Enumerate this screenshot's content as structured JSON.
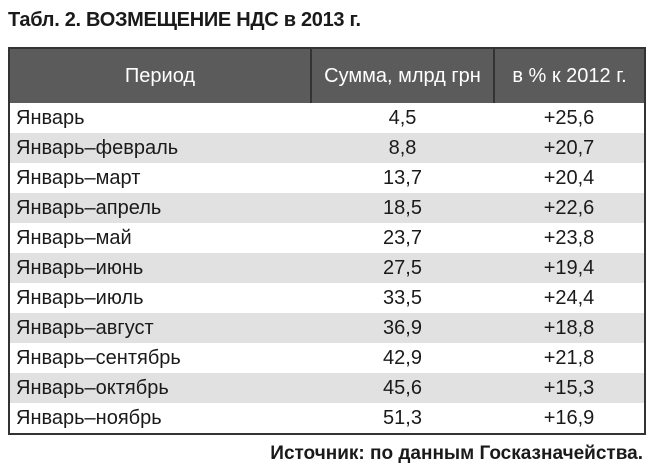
{
  "title": "Табл. 2. ВОЗМЕЩЕНИЕ НДС в 2013 г.",
  "table": {
    "headers": [
      "Период",
      "Сумма, млрд грн",
      "в % к 2012 г."
    ],
    "rows": [
      [
        "Январь",
        "4,5",
        "+25,6"
      ],
      [
        "Январь–февраль",
        "8,8",
        "+20,7"
      ],
      [
        "Январь–март",
        "13,7",
        "+20,4"
      ],
      [
        "Январь–апрель",
        "18,5",
        "+22,6"
      ],
      [
        "Январь–май",
        "23,7",
        "+23,8"
      ],
      [
        "Январь–июнь",
        "27,5",
        "+19,4"
      ],
      [
        "Январь–июль",
        "33,5",
        "+24,4"
      ],
      [
        "Январь–август",
        "36,9",
        "+18,8"
      ],
      [
        "Январь–сентябрь",
        "42,9",
        "+21,8"
      ],
      [
        "Январь–октябрь",
        "45,6",
        "+15,3"
      ],
      [
        "Январь–ноябрь",
        "51,3",
        "+16,9"
      ]
    ]
  },
  "source": "Источник: по данным Госказначейства.",
  "colors": {
    "header_bg": "#5b5b5b",
    "stripe": "#e1e1e1"
  }
}
